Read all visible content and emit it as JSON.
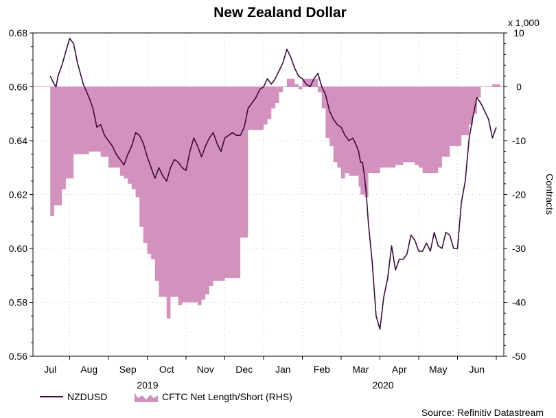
{
  "chart_data": {
    "type": "line",
    "title": "New Zealand Dollar",
    "left_axis": {
      "ylim": [
        0.56,
        0.68
      ],
      "ticks": [
        "0.56",
        "0.58",
        "0.60",
        "0.62",
        "0.64",
        "0.66",
        "0.68"
      ]
    },
    "right_axis": {
      "label": "Contracts",
      "multiplier": "x 1,000",
      "ylim": [
        -50,
        10
      ],
      "ticks": [
        "-50",
        "-40",
        "-30",
        "-20",
        "-10",
        "0",
        "10"
      ]
    },
    "x_months": [
      "Jul",
      "Aug",
      "Sep",
      "Oct",
      "Nov",
      "Dec",
      "Jan",
      "Feb",
      "Mar",
      "Apr",
      "May",
      "Jun"
    ],
    "x_years": [
      "2019",
      "2020"
    ],
    "source": "Source: Refinitiv Datastream",
    "series": [
      {
        "name": "NZDUSD",
        "axis": "left",
        "color": "#3d0a3d",
        "x": [
          0,
          0.1,
          0.15,
          0.2,
          0.3,
          0.4,
          0.5,
          0.6,
          0.7,
          0.85,
          1.0,
          1.1,
          1.2,
          1.3,
          1.4,
          1.5,
          1.6,
          1.7,
          1.8,
          1.9,
          2.0,
          2.1,
          2.2,
          2.3,
          2.4,
          2.5,
          2.6,
          2.7,
          2.8,
          2.9,
          3.0,
          3.1,
          3.2,
          3.3,
          3.4,
          3.5,
          3.6,
          3.7,
          3.8,
          3.9,
          4.0,
          4.1,
          4.2,
          4.3,
          4.4,
          4.5,
          4.6,
          4.7,
          4.8,
          4.9,
          5.0,
          5.1,
          5.2,
          5.3,
          5.4,
          5.5,
          5.6,
          5.7,
          5.8,
          5.9,
          6.0,
          6.1,
          6.2,
          6.3,
          6.4,
          6.5,
          6.6,
          6.7,
          6.8,
          6.9,
          7.0,
          7.1,
          7.2,
          7.3,
          7.4,
          7.5,
          7.6,
          7.7,
          7.8,
          7.9,
          7.95,
          8.0,
          8.05,
          8.1,
          8.15,
          8.2,
          8.3,
          8.4,
          8.5,
          8.6,
          8.7,
          8.8,
          8.9,
          9.0,
          9.1,
          9.2,
          9.3,
          9.4,
          9.5,
          9.6,
          9.7,
          9.8,
          9.9,
          10.0,
          10.1,
          10.2,
          10.3,
          10.4,
          10.5,
          10.6,
          10.7,
          10.8,
          10.9,
          11.0,
          11.1,
          11.2,
          11.3,
          11.4,
          11.5
        ],
        "values": [
          0.664,
          0.661,
          0.66,
          0.664,
          0.668,
          0.673,
          0.678,
          0.676,
          0.669,
          0.661,
          0.656,
          0.652,
          0.645,
          0.646,
          0.642,
          0.64,
          0.638,
          0.635,
          0.633,
          0.631,
          0.635,
          0.638,
          0.643,
          0.642,
          0.639,
          0.634,
          0.63,
          0.626,
          0.63,
          0.627,
          0.625,
          0.63,
          0.633,
          0.632,
          0.63,
          0.629,
          0.636,
          0.641,
          0.638,
          0.634,
          0.638,
          0.641,
          0.643,
          0.639,
          0.636,
          0.641,
          0.642,
          0.643,
          0.642,
          0.642,
          0.645,
          0.652,
          0.654,
          0.656,
          0.659,
          0.66,
          0.663,
          0.661,
          0.663,
          0.666,
          0.669,
          0.674,
          0.671,
          0.667,
          0.664,
          0.663,
          0.661,
          0.66,
          0.663,
          0.665,
          0.66,
          0.657,
          0.651,
          0.648,
          0.646,
          0.645,
          0.642,
          0.64,
          0.641,
          0.638,
          0.636,
          0.632,
          0.632,
          0.627,
          0.62,
          0.61,
          0.595,
          0.575,
          0.57,
          0.582,
          0.589,
          0.601,
          0.592,
          0.596,
          0.596,
          0.598,
          0.605,
          0.603,
          0.599,
          0.599,
          0.602,
          0.599,
          0.606,
          0.601,
          0.6,
          0.606,
          0.605,
          0.6,
          0.6,
          0.617,
          0.625,
          0.641,
          0.649,
          0.656,
          0.654,
          0.651,
          0.648,
          0.641,
          0.645
        ]
      },
      {
        "name": "CFTC Net Length/Short (RHS)",
        "axis": "right",
        "color": "#d391bd",
        "x": [
          0,
          0.1,
          0.15,
          0.2,
          0.3,
          0.4,
          0.5,
          0.6,
          0.7,
          0.85,
          1.0,
          1.1,
          1.2,
          1.3,
          1.4,
          1.5,
          1.6,
          1.7,
          1.8,
          1.9,
          2.0,
          2.1,
          2.2,
          2.3,
          2.4,
          2.5,
          2.6,
          2.7,
          2.8,
          2.9,
          3.0,
          3.1,
          3.2,
          3.3,
          3.4,
          3.5,
          3.6,
          3.7,
          3.8,
          3.9,
          4.0,
          4.1,
          4.2,
          4.3,
          4.4,
          4.5,
          4.6,
          4.7,
          4.8,
          4.9,
          5.0,
          5.1,
          5.2,
          5.3,
          5.4,
          5.5,
          5.6,
          5.7,
          5.8,
          5.9,
          6.0,
          6.1,
          6.2,
          6.3,
          6.4,
          6.5,
          6.6,
          6.7,
          6.8,
          6.9,
          7.0,
          7.1,
          7.2,
          7.3,
          7.4,
          7.5,
          7.6,
          7.7,
          7.8,
          7.9,
          7.95,
          8.0,
          8.05,
          8.1,
          8.15,
          8.2,
          8.3,
          8.4,
          8.5,
          8.6,
          8.7,
          8.8,
          8.9,
          9.0,
          9.1,
          9.2,
          9.3,
          9.4,
          9.5,
          9.6,
          9.7,
          9.8,
          9.9,
          10.0,
          10.1,
          10.2,
          10.3,
          10.4,
          10.5,
          10.6,
          10.7,
          10.8,
          10.9,
          11.0,
          11.1,
          11.2,
          11.3,
          11.4,
          11.5
        ],
        "values": [
          -24,
          -22,
          -22,
          -22,
          -19,
          -17,
          -17,
          -12.5,
          -12.5,
          -12.5,
          -12,
          -12,
          -12,
          -13,
          -13,
          -15,
          -15,
          -15,
          -16.5,
          -17,
          -18,
          -19,
          -20.5,
          -26,
          -29,
          -31,
          -32,
          -36,
          -39,
          -39,
          -43,
          -39,
          -39,
          -40.5,
          -40,
          -40,
          -40,
          -40,
          -40.5,
          -39.5,
          -38.5,
          -37,
          -36,
          -36,
          -36,
          -35.5,
          -35.5,
          -35.5,
          -35.5,
          -28,
          -28,
          -8,
          -8,
          -8,
          -8,
          -7,
          -6,
          -4,
          -3,
          -1,
          0,
          1.5,
          1.5,
          0.5,
          -0.5,
          1.5,
          1.5,
          1.5,
          1.5,
          -1,
          -4,
          -9.5,
          -11,
          -14,
          -15,
          -17,
          -16,
          -16.5,
          -16.5,
          -16.5,
          -18.5,
          -20,
          -20,
          -20.5,
          -20.5,
          -16,
          -16,
          -16,
          -15,
          -15,
          -15,
          -15,
          -14.5,
          -14.5,
          -14,
          -14,
          -14,
          -14.5,
          -15,
          -16,
          -16,
          -16,
          -16,
          -15,
          -13,
          -13,
          -11,
          -11,
          -11,
          -9,
          -9,
          -7,
          -5,
          -2,
          0,
          0,
          0,
          0.5,
          0.5
        ]
      }
    ]
  }
}
